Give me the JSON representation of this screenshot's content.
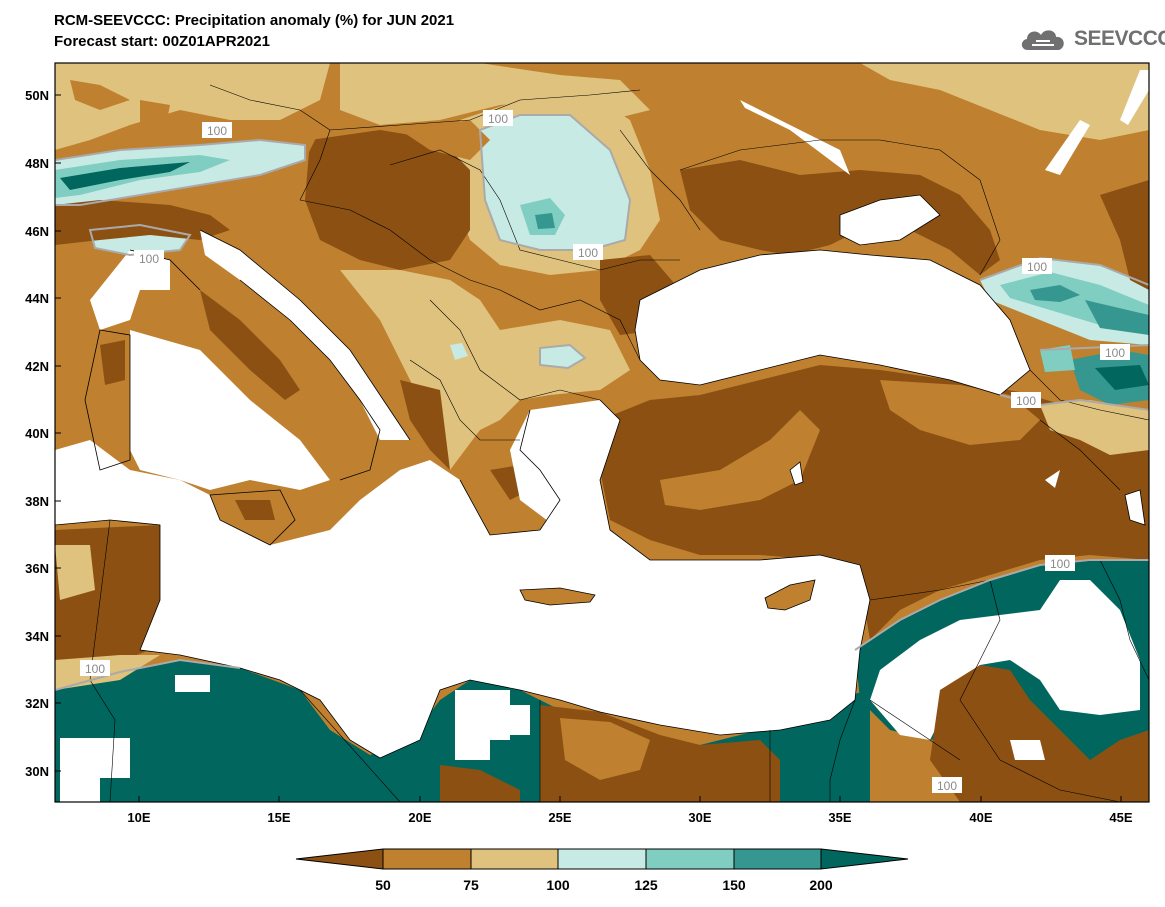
{
  "header": {
    "title": "RCM-SEEVCCC: Precipitation anomaly (%) for JUN 2021",
    "subtitle": "Forecast start: 00Z01APR2021"
  },
  "logo": {
    "text": "SEEVCCC",
    "icon": "cloud-icon",
    "color": "#707070"
  },
  "map": {
    "lon_range": [
      7,
      46
    ],
    "lat_range": [
      29,
      51
    ],
    "lat_ticks": [
      "50N",
      "48N",
      "46N",
      "44N",
      "42N",
      "40N",
      "38N",
      "36N",
      "34N",
      "32N",
      "30N"
    ],
    "lon_ticks": [
      "10E",
      "15E",
      "20E",
      "25E",
      "30E",
      "35E",
      "40E",
      "45E"
    ],
    "contour_labels": [
      "100",
      "100",
      "100",
      "100",
      "100",
      "100",
      "100",
      "100",
      "100",
      "100"
    ],
    "colors": {
      "below_50": "#8c5012",
      "50_75": "#bf8030",
      "75_100": "#dfc27d",
      "100_125": "#c7eae5",
      "125_150": "#80cdc1",
      "150_200": "#35978f",
      "above_200": "#01665e",
      "sea": "#ffffff"
    }
  },
  "colorbar": {
    "labels": [
      "50",
      "75",
      "100",
      "125",
      "150",
      "200"
    ],
    "colors": [
      "#8c5012",
      "#bf8030",
      "#dfc27d",
      "#c7eae5",
      "#80cdc1",
      "#35978f",
      "#01665e",
      "#01665e"
    ]
  }
}
